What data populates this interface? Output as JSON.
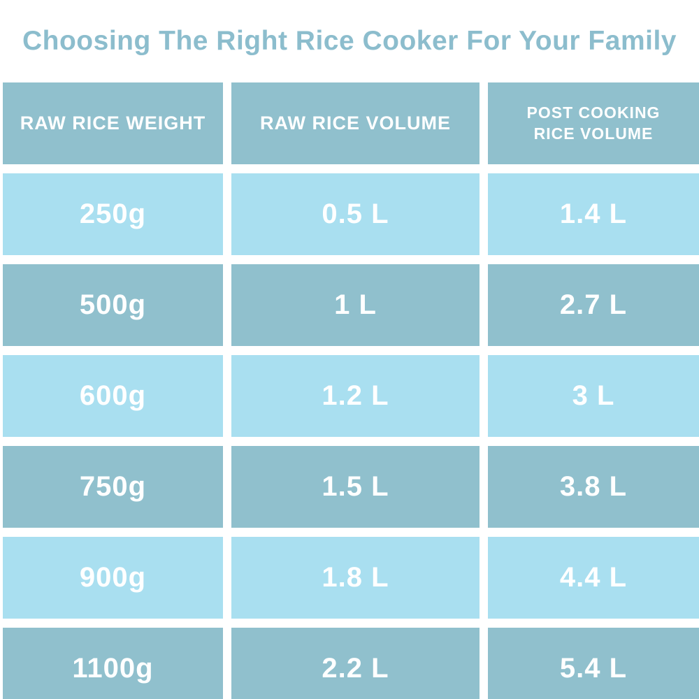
{
  "title": "Choosing The Right Rice Cooker For Your Family",
  "colors": {
    "title_text": "#8CBDCD",
    "header_bg": "#90C0CD",
    "row_light_bg": "#A9DFF0",
    "row_dark_bg": "#90C0CD",
    "cell_text": "#FFFFFF",
    "background": "#FFFFFF"
  },
  "chart_data": {
    "type": "table",
    "title": "Choosing The Right Rice Cooker For Your Family",
    "columns": [
      "RAW RICE WEIGHT",
      "RAW RICE VOLUME",
      "POST COOKING RICE VOLUME"
    ],
    "rows": [
      [
        "250g",
        "0.5 L",
        "1.4 L"
      ],
      [
        "500g",
        "1 L",
        "2.7 L"
      ],
      [
        "600g",
        "1.2 L",
        "3 L"
      ],
      [
        "750g",
        "1.5 L",
        "3.8 L"
      ],
      [
        "900g",
        "1.8 L",
        "4.4 L"
      ],
      [
        "1100g",
        "2.2 L",
        "5.4 L"
      ]
    ],
    "layout": {
      "row_pattern": [
        "light",
        "dark",
        "light",
        "dark",
        "light",
        "dark"
      ],
      "grid_gaps": true,
      "last_row_clipped": true
    }
  }
}
